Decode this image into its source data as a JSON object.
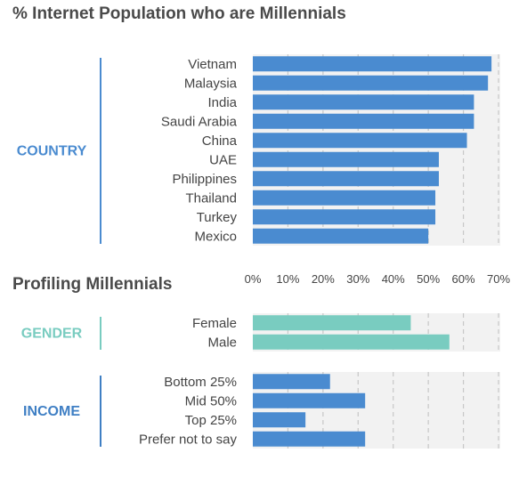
{
  "title": "% Internet Population who are Millennials",
  "subtitle": "Profiling Millennials",
  "colors": {
    "country_bar": "#4a8bd0",
    "gender_bar": "#79ccc0",
    "income_bar": "#4a8bd0",
    "panel_bg": "#f2f2f2",
    "grid": "#c8c8c8",
    "title_text": "#4a4a4a",
    "label_text": "#444444",
    "country_group": "#4a8bd0",
    "gender_group": "#79ccc0",
    "income_group": "#3f7fc4"
  },
  "chart_data": {
    "type": "bar",
    "orientation": "horizontal",
    "xlim": [
      0,
      70
    ],
    "x_ticks": [
      "0%",
      "10%",
      "20%",
      "30%",
      "40%",
      "50%",
      "60%",
      "70%"
    ],
    "x_tick_values": [
      0,
      10,
      20,
      30,
      40,
      50,
      60,
      70
    ],
    "grid": true,
    "groups": [
      {
        "name": "COUNTRY",
        "categories": [
          "Vietnam",
          "Malaysia",
          "India",
          "Saudi Arabia",
          "China",
          "UAE",
          "Philippines",
          "Thailand",
          "Turkey",
          "Mexico"
        ],
        "values": [
          68,
          67,
          63,
          63,
          61,
          53,
          53,
          52,
          52,
          50
        ]
      },
      {
        "name": "GENDER",
        "categories": [
          "Female",
          "Male"
        ],
        "values": [
          45,
          56
        ]
      },
      {
        "name": "INCOME",
        "categories": [
          "Bottom 25%",
          "Mid 50%",
          "Top 25%",
          "Prefer not to say"
        ],
        "values": [
          22,
          32,
          15,
          32
        ]
      }
    ]
  }
}
